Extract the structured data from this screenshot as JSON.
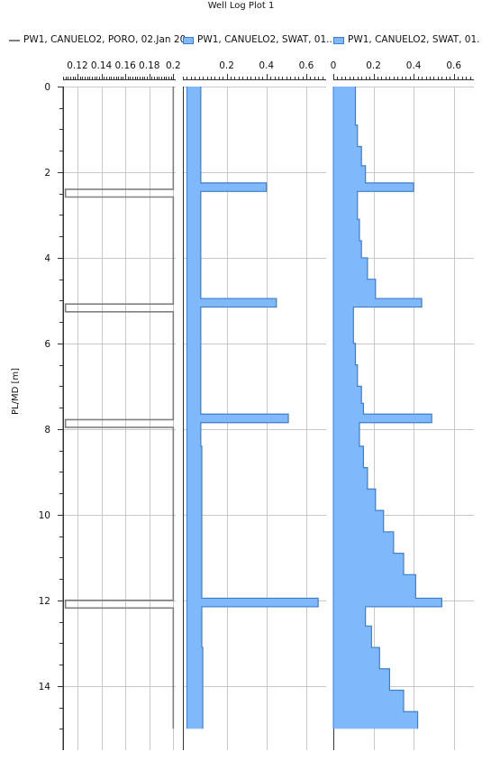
{
  "title": "Well Log Plot 1",
  "yaxis_label": "PL/MD [m]",
  "legend": [
    {
      "text": "PW1, CANUELO2, PORO, 02.Jan 20",
      "style": "line",
      "color": "#808080"
    },
    {
      "text": "PW1, CANUELO2, SWAT, 01..",
      "style": "area",
      "color": "#7fb8fb"
    },
    {
      "text": "PW1, CANUELO2, SWAT, 01.",
      "style": "area",
      "color": "#7fb8fb"
    }
  ],
  "colors": {
    "swat_fill": "#7fb8fb",
    "swat_edge": "#3d7ecb",
    "poro_line": "#808080",
    "grid": "#c8c8c8"
  },
  "chart_data": [
    {
      "type": "line",
      "series": [
        {
          "name": "PW1, CANUELO2, PORO, 02.Jan 20",
          "color": "#808080"
        }
      ],
      "xlim": [
        0.108,
        0.202
      ],
      "xticks": [
        0.12,
        0.14,
        0.16,
        0.18,
        0.2
      ],
      "xticklabels": [
        "0.12",
        "0.14",
        "0.16",
        "0.18",
        "0.2"
      ],
      "ylim": [
        0,
        15.5
      ],
      "yticks": [
        0,
        2,
        4,
        6,
        8,
        10,
        12,
        14
      ],
      "ylabel": "PL/MD [m]",
      "grid": true,
      "spikes": [
        {
          "top": 2.4,
          "bottom": 2.58,
          "value": 0.11
        },
        {
          "top": 5.08,
          "bottom": 5.26,
          "value": 0.11
        },
        {
          "top": 7.78,
          "bottom": 7.96,
          "value": 0.11
        },
        {
          "top": 12.0,
          "bottom": 12.18,
          "value": 0.11
        }
      ],
      "base_value": 0.2,
      "depth_end": 15.0
    },
    {
      "type": "area",
      "series": [
        {
          "name": "PW1, CANUELO2, SWAT, 01..",
          "color": "#7fb8fb"
        }
      ],
      "xlim": [
        -0.02,
        0.7
      ],
      "xticks": [
        0.2,
        0.4,
        0.6
      ],
      "xticklabels": [
        "0.2",
        "0.4",
        "0.6"
      ],
      "ylim": [
        0,
        15.5
      ],
      "yticks": [
        0,
        2,
        4,
        6,
        8,
        10,
        12,
        14
      ],
      "grid": true,
      "steps": [
        {
          "depth": 0,
          "value": 0.07
        },
        {
          "depth": 2.25,
          "value": 0.4
        },
        {
          "depth": 2.45,
          "value": 0.07
        },
        {
          "depth": 4.95,
          "value": 0.45
        },
        {
          "depth": 5.15,
          "value": 0.07
        },
        {
          "depth": 7.65,
          "value": 0.51
        },
        {
          "depth": 7.85,
          "value": 0.07
        },
        {
          "depth": 8.4,
          "value": 0.075
        },
        {
          "depth": 11.95,
          "value": 0.66
        },
        {
          "depth": 12.15,
          "value": 0.075
        },
        {
          "depth": 13.1,
          "value": 0.08
        }
      ],
      "depth_end": 15.0
    },
    {
      "type": "area",
      "series": [
        {
          "name": "PW1, CANUELO2, SWAT, 01.",
          "color": "#7fb8fb"
        }
      ],
      "xlim": [
        0,
        0.7
      ],
      "xticks": [
        0,
        0.2,
        0.4,
        0.6
      ],
      "xticklabels": [
        "0",
        "0.2",
        "0.4",
        "0.6"
      ],
      "ylim": [
        0,
        15.5
      ],
      "yticks": [
        0,
        2,
        4,
        6,
        8,
        10,
        12,
        14
      ],
      "grid": true,
      "steps": [
        {
          "depth": 0,
          "value": 0.11
        },
        {
          "depth": 0.9,
          "value": 0.12
        },
        {
          "depth": 1.4,
          "value": 0.14
        },
        {
          "depth": 1.85,
          "value": 0.16
        },
        {
          "depth": 2.25,
          "value": 0.4
        },
        {
          "depth": 2.45,
          "value": 0.12
        },
        {
          "depth": 3.1,
          "value": 0.13
        },
        {
          "depth": 3.6,
          "value": 0.14
        },
        {
          "depth": 4.0,
          "value": 0.17
        },
        {
          "depth": 4.5,
          "value": 0.21
        },
        {
          "depth": 4.95,
          "value": 0.44
        },
        {
          "depth": 5.15,
          "value": 0.1
        },
        {
          "depth": 6.0,
          "value": 0.11
        },
        {
          "depth": 6.5,
          "value": 0.12
        },
        {
          "depth": 7.0,
          "value": 0.14
        },
        {
          "depth": 7.4,
          "value": 0.15
        },
        {
          "depth": 7.65,
          "value": 0.49
        },
        {
          "depth": 7.85,
          "value": 0.13
        },
        {
          "depth": 8.4,
          "value": 0.15
        },
        {
          "depth": 8.9,
          "value": 0.17
        },
        {
          "depth": 9.4,
          "value": 0.21
        },
        {
          "depth": 9.9,
          "value": 0.25
        },
        {
          "depth": 10.4,
          "value": 0.3
        },
        {
          "depth": 10.9,
          "value": 0.35
        },
        {
          "depth": 11.4,
          "value": 0.41
        },
        {
          "depth": 11.95,
          "value": 0.54
        },
        {
          "depth": 12.15,
          "value": 0.16
        },
        {
          "depth": 12.6,
          "value": 0.19
        },
        {
          "depth": 13.1,
          "value": 0.23
        },
        {
          "depth": 13.6,
          "value": 0.28
        },
        {
          "depth": 14.1,
          "value": 0.35
        },
        {
          "depth": 14.6,
          "value": 0.42
        }
      ],
      "depth_end": 15.0
    }
  ]
}
